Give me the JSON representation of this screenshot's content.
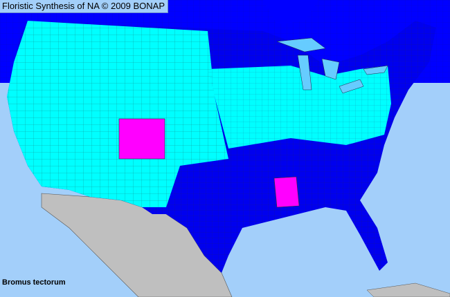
{
  "header": {
    "title": "Floristic Synthesis of NA © 2009 BONAP"
  },
  "map": {
    "species": "Bromus tectorum",
    "colors": {
      "ocean": "#a3cffa",
      "canada": "#0000ff",
      "present_state": "#0000ee",
      "present_county": "#00ffff",
      "noxious": "#ff00ff",
      "mexico": "#bfbfbf",
      "lakes": "#66ccff"
    }
  }
}
